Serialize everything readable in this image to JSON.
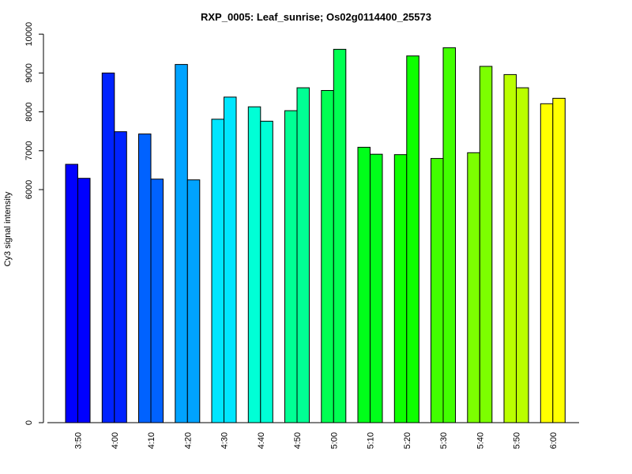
{
  "chart_data": {
    "type": "bar",
    "title": "RXP_0005: Leaf_sunrise; Os02g0114400_25573",
    "xlabel": "",
    "ylabel": "Cy3 signal intensity",
    "y_ticks": [
      0,
      6000,
      7000,
      8000,
      9000,
      10000
    ],
    "ylim": [
      0,
      10000
    ],
    "y_scale": "piecewise linear (0 to 6000 compressed)",
    "categories": [
      "3:50",
      "4:00",
      "4:10",
      "4:20",
      "4:30",
      "4:40",
      "4:50",
      "5:00",
      "5:10",
      "5:20",
      "5:30",
      "5:40",
      "5:50",
      "6:00"
    ],
    "series": [
      {
        "values": [
          6650,
          9000,
          7430,
          9220,
          7810,
          8130,
          8030,
          8550,
          7090,
          6900,
          6800,
          6950,
          8960,
          8210
        ]
      },
      {
        "values": [
          6290,
          7490,
          6270,
          6250,
          8380,
          7760,
          8620,
          9610,
          6910,
          9440,
          9650,
          9170,
          8620,
          8350
        ]
      }
    ],
    "colors": [
      "#0000FF",
      "#0023FF",
      "#0062FF",
      "#00A3FF",
      "#00E6FF",
      "#00FFD6",
      "#00FF94",
      "#00FF52",
      "#00FF1A",
      "#0DFF00",
      "#42FF00",
      "#7CFF00",
      "#BAFF00",
      "#FFFF00"
    ],
    "legend": "none",
    "grid": false
  }
}
